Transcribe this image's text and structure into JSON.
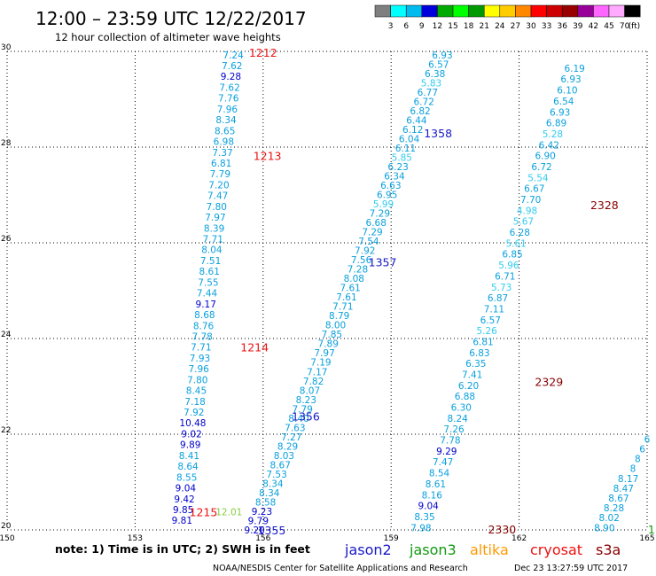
{
  "header": {
    "title": "12:00 – 23:59 UTC 12/22/2017",
    "subtitle": "12 hour collection of altimeter wave heights"
  },
  "colorbar": {
    "labels": [
      "3",
      "6",
      "9",
      "12",
      "15",
      "18",
      "21",
      "24",
      "27",
      "30",
      "33",
      "36",
      "39",
      "42",
      "45",
      "70"
    ],
    "unit": "(ft)",
    "colors": [
      "#7f7f7f",
      "#00ffff",
      "#00bbee",
      "#0000dd",
      "#00aa00",
      "#00ff00",
      "#009900",
      "#ffff00",
      "#ffcc00",
      "#ff8800",
      "#ff0000",
      "#cc0000",
      "#990000",
      "#990099",
      "#ff66ff",
      "#ffaaff",
      "#000000"
    ]
  },
  "footer": {
    "note": "note:  1) Time is in UTC; 2) SWH is in feet",
    "credit": "NOAA/NESDIS Center for Satellite Applications and Research",
    "timestamp": "Dec 23 13:27:59 UTC 2017"
  },
  "legend": [
    {
      "name": "jason2",
      "color": "#1818c8"
    },
    {
      "name": "jason3",
      "color": "#119911"
    },
    {
      "name": "altika",
      "color": "#ff9900"
    },
    {
      "name": "cryosat",
      "color": "#ee1111"
    },
    {
      "name": "s3a",
      "color": "#880000"
    }
  ],
  "chart_data": {
    "type": "scatter",
    "xlim": [
      150,
      165
    ],
    "ylim": [
      20,
      30
    ],
    "xticks": [
      "150",
      "153",
      "156",
      "159",
      "162",
      "165"
    ],
    "yticks": [
      "20",
      "22",
      "24",
      "26",
      "28",
      "30"
    ],
    "grid": true,
    "color_ranges": [
      {
        "max": 6,
        "color": "#33ccee"
      },
      {
        "max": 9,
        "color": "#0aa0dd"
      },
      {
        "max": 12,
        "color": "#0000cc"
      },
      {
        "max": 99,
        "color": "#33cc33"
      }
    ],
    "tracks": [
      {
        "satellite": "jason2",
        "values": [
          "7.24",
          "7.62",
          "9.28",
          "7.62",
          "7.76",
          "7.96",
          "8.34",
          "8.65",
          "6.98",
          "7.37",
          "6.81",
          "7.79",
          "7.20",
          "7.47",
          "7.80",
          "7.97",
          "8.39",
          "7.71",
          "8.04",
          "7.51",
          "8.61",
          "7.55",
          "7.44",
          "9.17",
          "8.68",
          "8.76",
          "7.78",
          "7.71",
          "7.93",
          "7.96",
          "7.80",
          "8.45",
          "7.18",
          "7.92",
          "10.48",
          "9.02",
          "9.89",
          "8.41",
          "8.64",
          "8.55",
          "9.04",
          "9.42",
          "9.85",
          "9.81"
        ],
        "lat_start": 29.93,
        "lon_start": 155.3,
        "lat_end": 20.2,
        "lon_end": 154.1
      },
      {
        "satellite": "jason2",
        "values": [
          "6.93",
          "6.57",
          "6.38",
          "5.83",
          "6.77",
          "6.72",
          "6.82",
          "6.44",
          "6.12",
          "6.04",
          "6.11",
          "5.85",
          "6.23",
          "6.34",
          "6.63",
          "6.95",
          "5.99",
          "7.29",
          "6.68",
          "7.29",
          "7.54",
          "7.92",
          "7.56",
          "7.28",
          "8.08",
          "7.61",
          "7.61",
          "7.71",
          "8.79",
          "8.00",
          "7.85",
          "7.89",
          "7.97",
          "7.19",
          "7.17",
          "7.82",
          "8.07",
          "8.23",
          "7.79",
          "8.40",
          "7.63",
          "7.27",
          "8.29",
          "8.03",
          "8.67",
          "7.53",
          "8.34",
          "8.34",
          "8.58",
          "9.23",
          "9.79",
          "9.20"
        ],
        "lat_start": 29.93,
        "lon_start": 160.2,
        "lat_end": 20.0,
        "lon_end": 155.8
      },
      {
        "satellite": "jason2",
        "values": [
          "6.19",
          "6.93",
          "6.10",
          "6.54",
          "6.93",
          "6.89",
          "5.28",
          "6.42",
          "6.90",
          "6.72",
          "5.54",
          "6.67",
          "7.70",
          "4.98",
          "5.67",
          "6.28",
          "5.61",
          "6.85",
          "5.96",
          "6.71",
          "5.73",
          "6.87",
          "7.11",
          "6.57",
          "5.26",
          "6.81",
          "6.83",
          "6.35",
          "7.41",
          "6.20",
          "6.88",
          "6.30",
          "8.24",
          "7.26",
          "7.78",
          "9.29",
          "7.47",
          "8.54",
          "8.61",
          "8.16",
          "9.04",
          "8.35",
          "7.98"
        ],
        "lat_start": 29.65,
        "lon_start": 163.3,
        "lat_end": 20.05,
        "lon_end": 159.7
      },
      {
        "satellite": "jason2",
        "values": [
          "6",
          "6",
          "8",
          "8",
          "8.17",
          "8.47",
          "8.67",
          "8.28",
          "8.02",
          "8.90"
        ],
        "lat_start": 21.9,
        "lon_start": 165.0,
        "lat_end": 20.05,
        "lon_end": 164.0
      }
    ],
    "green_point": {
      "value": "12.01",
      "lat": 20.38,
      "lon": 155.2
    },
    "pass_labels": [
      {
        "text": "1212",
        "satellite": "cryosat",
        "lat": 29.98,
        "lon": 156.0
      },
      {
        "text": "1213",
        "satellite": "cryosat",
        "lat": 27.82,
        "lon": 156.1
      },
      {
        "text": "1214",
        "satellite": "cryosat",
        "lat": 23.82,
        "lon": 155.8
      },
      {
        "text": "1215",
        "satellite": "cryosat",
        "lat": 20.38,
        "lon": 154.6
      },
      {
        "text": "1358",
        "satellite": "jason2",
        "lat": 28.3,
        "lon": 160.1
      },
      {
        "text": "1357",
        "satellite": "jason2",
        "lat": 25.6,
        "lon": 158.8
      },
      {
        "text": "1356",
        "satellite": "jason2",
        "lat": 22.38,
        "lon": 157.0
      },
      {
        "text": "1355",
        "satellite": "jason2",
        "lat": 20.0,
        "lon": 156.2
      },
      {
        "text": "2328",
        "satellite": "s3a",
        "lat": 26.8,
        "lon": 164.0
      },
      {
        "text": "2329",
        "satellite": "s3a",
        "lat": 23.1,
        "lon": 162.7
      },
      {
        "text": "2330",
        "satellite": "s3a",
        "lat": 20.02,
        "lon": 161.6
      },
      {
        "text": "1",
        "satellite": "jason3",
        "lat": 20.02,
        "lon": 165.1
      }
    ]
  }
}
